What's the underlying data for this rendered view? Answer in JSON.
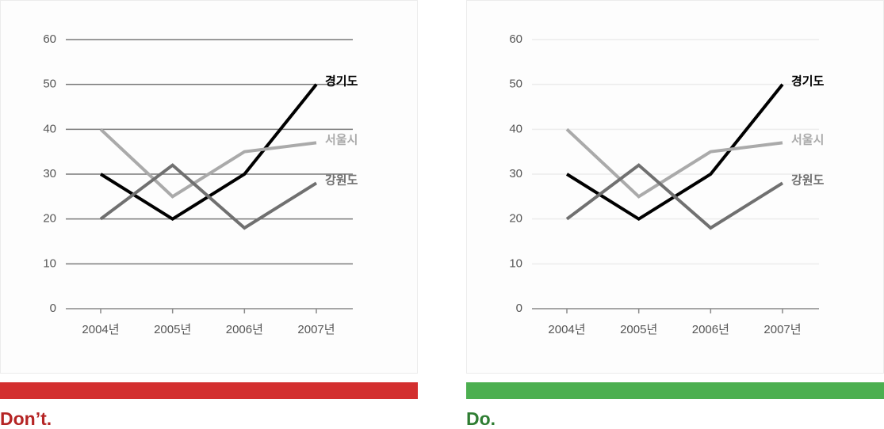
{
  "chart_data": [
    {
      "type": "line",
      "caption": "Don’t.",
      "grid": true,
      "grid_color": "#7a7a7a",
      "categories": [
        "2004년",
        "2005년",
        "2006년",
        "2007년"
      ],
      "ylim": [
        0,
        60
      ],
      "yticks": [
        0,
        10,
        20,
        30,
        40,
        50,
        60
      ],
      "series": [
        {
          "name": "경기도",
          "color": "#000000",
          "values": [
            30,
            20,
            30,
            50
          ]
        },
        {
          "name": "서울시",
          "color": "#aaaaaa",
          "values": [
            40,
            25,
            35,
            37
          ]
        },
        {
          "name": "강원도",
          "color": "#707070",
          "values": [
            20,
            32,
            18,
            28
          ]
        }
      ]
    },
    {
      "type": "line",
      "caption": "Do.",
      "grid": true,
      "grid_color": "#ececec",
      "categories": [
        "2004년",
        "2005년",
        "2006년",
        "2007년"
      ],
      "ylim": [
        0,
        60
      ],
      "yticks": [
        0,
        10,
        20,
        30,
        40,
        50,
        60
      ],
      "series": [
        {
          "name": "경기도",
          "color": "#000000",
          "values": [
            30,
            20,
            30,
            50
          ]
        },
        {
          "name": "서울시",
          "color": "#aaaaaa",
          "values": [
            40,
            25,
            35,
            37
          ]
        },
        {
          "name": "강원도",
          "color": "#707070",
          "values": [
            20,
            32,
            18,
            28
          ]
        }
      ]
    }
  ]
}
